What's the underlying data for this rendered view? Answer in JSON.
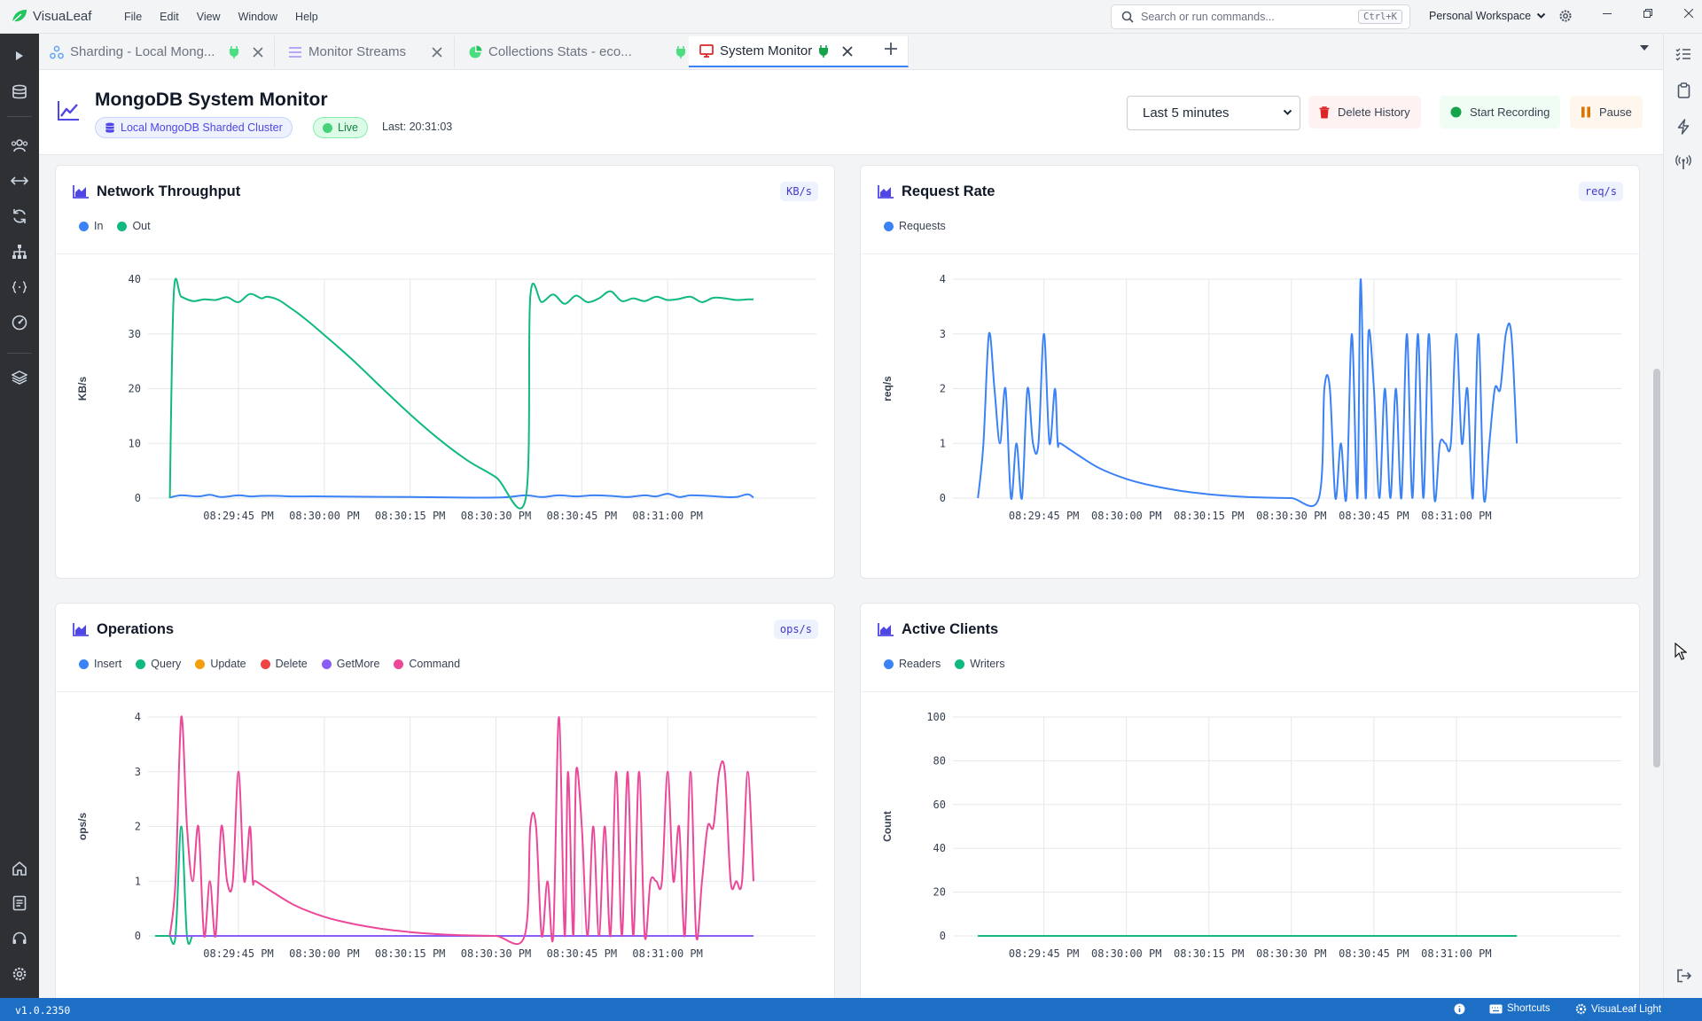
{
  "app": {
    "name": "VisuaLeaf",
    "version": "v1.0.2350"
  },
  "menu": [
    "File",
    "Edit",
    "View",
    "Window",
    "Help"
  ],
  "command_search": {
    "placeholder": "Search or run commands...",
    "shortcut": "Ctrl+K"
  },
  "workspace": {
    "label": "Personal Workspace"
  },
  "tabs": [
    {
      "label": "Sharding - Local Mong...",
      "icon": "sharding-icon",
      "status_icon": "plug-icon",
      "active": false
    },
    {
      "label": "Monitor Streams",
      "icon": "list-icon",
      "status_icon": "",
      "active": false
    },
    {
      "label": "Collections Stats - eco...",
      "icon": "pie-chart-icon",
      "status_icon": "plug-icon",
      "active": false
    },
    {
      "label": "System Monitor",
      "icon": "monitor-icon",
      "status_icon": "plug-icon",
      "active": true
    }
  ],
  "header": {
    "title": "MongoDB System Monitor",
    "cluster": "Local MongoDB Sharded Cluster",
    "live": "Live",
    "last_updated": "Last: 20:31:03",
    "time_range": "Last 5 minutes",
    "delete_label": "Delete History",
    "record_label": "Start Recording",
    "pause_label": "Pause"
  },
  "colors": {
    "blue": "#3b82f6",
    "green": "#10b981",
    "orange": "#f59e0b",
    "red": "#ef4444",
    "purple": "#8b5cf6",
    "pink": "#ec4899",
    "accent": "#4f46e5",
    "statusbar": "#1d6fc6"
  },
  "panels": [
    {
      "title": "Network Throughput",
      "unit": "KB/s",
      "legend": [
        {
          "label": "In",
          "color": "#3b82f6"
        },
        {
          "label": "Out",
          "color": "#10b981"
        }
      ]
    },
    {
      "title": "Request Rate",
      "unit": "req/s",
      "legend": [
        {
          "label": "Requests",
          "color": "#3b82f6"
        }
      ]
    },
    {
      "title": "Operations",
      "unit": "ops/s",
      "legend": [
        {
          "label": "Insert",
          "color": "#3b82f6"
        },
        {
          "label": "Query",
          "color": "#10b981"
        },
        {
          "label": "Update",
          "color": "#f59e0b"
        },
        {
          "label": "Delete",
          "color": "#ef4444"
        },
        {
          "label": "GetMore",
          "color": "#8b5cf6"
        },
        {
          "label": "Command",
          "color": "#ec4899"
        }
      ]
    },
    {
      "title": "Active Clients",
      "unit": "",
      "legend": [
        {
          "label": "Readers",
          "color": "#3b82f6"
        },
        {
          "label": "Writers",
          "color": "#10b981"
        }
      ]
    }
  ],
  "chart_data": [
    {
      "type": "line",
      "title": "Network Throughput",
      "ylabel": "KB/s",
      "ylim": [
        0,
        40
      ],
      "yticks": [
        0,
        10,
        20,
        30,
        40
      ],
      "xlim": [
        -22,
        101
      ],
      "xticks": [
        "08:29:45 PM",
        "08:30:00 PM",
        "08:30:15 PM",
        "08:30:30 PM",
        "08:30:45 PM",
        "08:31:00 PM"
      ],
      "xtick_positions": [
        0,
        15,
        30,
        45,
        60,
        75
      ],
      "grid": true,
      "series": [
        {
          "name": "In",
          "color": "#3b82f6",
          "x": [
            -12,
            -10,
            -7,
            -5,
            -3,
            0,
            2,
            4,
            7,
            9,
            11,
            15,
            30,
            45,
            50,
            53,
            56,
            59,
            62,
            65,
            68,
            71,
            73,
            75,
            77,
            79,
            82,
            85,
            87,
            89,
            90
          ],
          "y": [
            0.1,
            0.5,
            0.3,
            0.6,
            0.2,
            0.5,
            0.3,
            0.4,
            0.4,
            0.3,
            0.3,
            0.3,
            0.2,
            0.1,
            0.5,
            0.2,
            0.5,
            0.3,
            0.5,
            0.4,
            0.2,
            0.5,
            0.3,
            0.8,
            0.2,
            0.5,
            0.4,
            0.2,
            0.2,
            0.7,
            0.1
          ]
        },
        {
          "name": "Out",
          "color": "#10b981",
          "x": [
            -12,
            -11.3,
            -10,
            -8,
            -6,
            -4,
            -2,
            0,
            2,
            4,
            5,
            7,
            9,
            11,
            15,
            20,
            25,
            30,
            35,
            40,
            45,
            50.2,
            51,
            53,
            55,
            57,
            59,
            61,
            63,
            65,
            67,
            69,
            71,
            73,
            75,
            77,
            79,
            81,
            83,
            85,
            87,
            89,
            90
          ],
          "y": [
            0,
            37.5,
            36.8,
            36,
            36.3,
            36.2,
            36.7,
            35.8,
            37.3,
            36.5,
            36.8,
            36.2,
            34.8,
            33.3,
            29.8,
            25.2,
            20.2,
            15.3,
            10.8,
            6.9,
            3.8,
            0,
            36.8,
            35.8,
            37.2,
            35.5,
            37,
            35.8,
            36.5,
            37.8,
            36,
            36.5,
            36,
            36.8,
            36.2,
            36.4,
            36.8,
            35.8,
            36.6,
            36.5,
            36.2,
            36.3,
            36.3
          ]
        }
      ]
    },
    {
      "type": "line",
      "title": "Request Rate",
      "ylabel": "req/s",
      "ylim": [
        0,
        4
      ],
      "yticks": [
        0,
        1,
        2,
        3,
        4
      ],
      "xlim": [
        -23,
        105
      ],
      "xticks": [
        "08:29:45 PM",
        "08:30:00 PM",
        "08:30:15 PM",
        "08:30:30 PM",
        "08:30:45 PM",
        "08:31:00 PM"
      ],
      "xtick_positions": [
        0,
        15,
        30,
        45,
        60,
        75
      ],
      "grid": true,
      "series": [
        {
          "name": "Requests",
          "color": "#3b82f6",
          "x": [
            -12,
            -11,
            -10,
            -9,
            -8,
            -7,
            -6,
            -5,
            -4,
            -3,
            -2,
            -1,
            0,
            1,
            2,
            2.5,
            3,
            6,
            10,
            15,
            20,
            25,
            30,
            35,
            40,
            45,
            50,
            51,
            52,
            53,
            54,
            55,
            56,
            57,
            57.6,
            58.5,
            59,
            60,
            61,
            62,
            63,
            64,
            65,
            66,
            67,
            68,
            69,
            70,
            71,
            72,
            73,
            74,
            75,
            76,
            77,
            78,
            79,
            80,
            81,
            82,
            83,
            84,
            85,
            86
          ],
          "y": [
            0,
            1,
            3,
            2,
            1,
            2,
            0,
            1,
            0,
            2,
            1,
            1,
            3,
            1,
            2,
            1,
            1,
            0.8,
            0.55,
            0.35,
            0.22,
            0.13,
            0.07,
            0.03,
            0.01,
            0,
            0,
            2,
            2,
            0,
            1,
            0,
            3,
            0,
            4,
            0,
            3,
            2,
            0,
            2,
            0,
            2,
            0,
            3,
            0,
            3,
            0,
            3,
            0,
            1,
            1,
            1,
            3,
            1,
            2,
            0,
            3,
            0,
            1,
            2,
            2,
            3,
            3,
            1
          ]
        }
      ]
    },
    {
      "type": "line",
      "title": "Operations",
      "ylabel": "ops/s",
      "ylim": [
        0,
        4
      ],
      "yticks": [
        0,
        1,
        2,
        3,
        4
      ],
      "xlim": [
        -22,
        101
      ],
      "xticks": [
        "08:29:45 PM",
        "08:30:00 PM",
        "08:30:15 PM",
        "08:30:30 PM",
        "08:30:45 PM",
        "08:31:00 PM"
      ],
      "xtick_positions": [
        0,
        15,
        30,
        45,
        60,
        75
      ],
      "grid": true,
      "series": [
        {
          "name": "Insert",
          "color": "#3b82f6",
          "x": [
            -12,
            90
          ],
          "y": [
            0,
            0
          ]
        },
        {
          "name": "Query",
          "color": "#10b981",
          "x": [
            -12,
            -11,
            -10,
            -9,
            -8,
            -7,
            90
          ],
          "y": [
            0,
            0,
            2,
            0,
            0,
            0,
            0
          ]
        },
        {
          "name": "Update",
          "color": "#f59e0b",
          "x": [
            -12,
            90
          ],
          "y": [
            0,
            0
          ]
        },
        {
          "name": "Delete",
          "color": "#ef4444",
          "x": [
            -12,
            90
          ],
          "y": [
            0,
            0
          ]
        },
        {
          "name": "GetMore",
          "color": "#8b5cf6",
          "x": [
            -12,
            90
          ],
          "y": [
            0,
            0
          ]
        },
        {
          "name": "Command",
          "color": "#ec4899",
          "x": [
            -12,
            -11,
            -10,
            -9,
            -8,
            -7,
            -6,
            -5,
            -4,
            -3,
            -2,
            -1,
            0,
            1,
            2,
            2.5,
            3,
            6,
            10,
            15,
            20,
            25,
            30,
            35,
            40,
            45,
            50,
            51,
            52,
            53,
            54,
            55,
            56,
            57,
            57.6,
            58.5,
            59,
            60,
            61,
            62,
            63,
            64,
            65,
            66,
            67,
            68,
            69,
            70,
            71,
            72,
            73,
            74,
            75,
            76,
            77,
            78,
            79,
            80,
            81,
            82,
            83,
            84,
            85,
            86,
            87,
            88,
            89,
            90
          ],
          "y": [
            0,
            1,
            4,
            2,
            1,
            2,
            0,
            1,
            0,
            2,
            1,
            1,
            3,
            1,
            2,
            1,
            1,
            0.8,
            0.55,
            0.35,
            0.22,
            0.13,
            0.07,
            0.03,
            0.01,
            0,
            0,
            2,
            2,
            0,
            1,
            0,
            4,
            0,
            3,
            0,
            3,
            2,
            0,
            2,
            0,
            2,
            0,
            3,
            0,
            3,
            0,
            3,
            0,
            1,
            1,
            1,
            3,
            1,
            2,
            0,
            3,
            0,
            1,
            2,
            2,
            3,
            3,
            1,
            1,
            1,
            3,
            1
          ]
        }
      ]
    },
    {
      "type": "line",
      "title": "Active Clients",
      "ylabel": "Count",
      "ylim": [
        0,
        100
      ],
      "yticks": [
        0,
        20,
        40,
        60,
        80,
        100
      ],
      "xlim": [
        -23,
        105
      ],
      "xticks": [
        "08:29:45 PM",
        "08:30:00 PM",
        "08:30:15 PM",
        "08:30:30 PM",
        "08:30:45 PM",
        "08:31:00 PM"
      ],
      "xtick_positions": [
        0,
        15,
        30,
        45,
        60,
        75
      ],
      "grid": true,
      "series": [
        {
          "name": "Readers",
          "color": "#3b82f6",
          "x": [
            -12,
            86
          ],
          "y": [
            0,
            0
          ]
        },
        {
          "name": "Writers",
          "color": "#10b981",
          "x": [
            -12,
            86
          ],
          "y": [
            0,
            0
          ]
        }
      ]
    }
  ],
  "statusbar": {
    "shortcuts": "Shortcuts",
    "theme": "VisuaLeaf Light"
  }
}
